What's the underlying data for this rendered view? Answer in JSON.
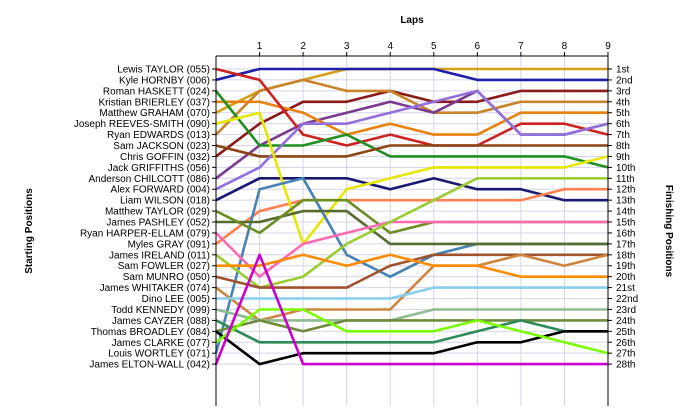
{
  "chart_data": {
    "type": "line",
    "title": "Laps",
    "ylabel_left": "Starting Positions",
    "ylabel_right": "Finishing Positions",
    "x_ticks": [
      "1",
      "2",
      "3",
      "4",
      "5",
      "6",
      "7",
      "8",
      "9"
    ],
    "x_range": [
      0,
      9
    ],
    "position_range": [
      1,
      28
    ],
    "grid": true,
    "drivers": [
      "Lewis TAYLOR (055)",
      "Kyle HORNBY (006)",
      "Roman HASKETT (024)",
      "Kristian BRIERLEY (037)",
      "Matthew GRAHAM (070)",
      "Joseph REEVES-SMITH (090)",
      "Ryan EDWARDS (013)",
      "Sam JACKSON (023)",
      "Chris GOFFIN (032)",
      "Jack GRIFFITHS (056)",
      "Anderson CHILCOTT (086)",
      "Alex FORWARD (004)",
      "Liam WILSON (018)",
      "Matthew TAYLOR (029)",
      "James PASHLEY (052)",
      "Ryan HARPER-ELLAM (079)",
      "Myles GRAY (091)",
      "James IRELAND (011)",
      "Sam FOWLER (027)",
      "Sam MUNRO (050)",
      "James WHITAKER (074)",
      "Dino LEE (005)",
      "Todd KENNEDY (099)",
      "James CAYZER (088)",
      "Thomas BROADLEY (084)",
      "James CLARKE (077)",
      "Louis WORTLEY (071)",
      "James ELTON-WALL (042)"
    ],
    "finishing_labels": [
      "1st",
      "2nd",
      "3rd",
      "4th",
      "5th",
      "6th",
      "7th",
      "8th",
      "9th",
      "10th",
      "11th",
      "12th",
      "13th",
      "14th",
      "15th",
      "16th",
      "17th",
      "18th",
      "19th",
      "20th",
      "21st",
      "22nd",
      "23rd",
      "24th",
      "25th",
      "26th",
      "27th",
      "28th"
    ],
    "series": [
      {
        "color": "#d4a017",
        "positions": [
          5,
          3,
          2,
          1,
          1,
          1,
          1,
          1,
          1,
          1
        ]
      },
      {
        "color": "#1f1faa",
        "positions": [
          2,
          1,
          1,
          1,
          1,
          1,
          2,
          2,
          2,
          2
        ]
      },
      {
        "color": "#8b1a1a",
        "positions": [
          9,
          6,
          4,
          4,
          3,
          4,
          4,
          3,
          3,
          3
        ]
      },
      {
        "color": "#c8842a",
        "positions": [
          7,
          3,
          2,
          3,
          3,
          5,
          5,
          4,
          4,
          4
        ]
      },
      {
        "color": "#7a3b8f",
        "positions": [
          11,
          8,
          6,
          5,
          4,
          5,
          3,
          7,
          7,
          6
        ]
      },
      {
        "color": "#e8820c",
        "positions": [
          4,
          4,
          5,
          7,
          6,
          7,
          7,
          5,
          5,
          5
        ]
      },
      {
        "color": "#cc2222",
        "positions": [
          1,
          2,
          7,
          8,
          7,
          8,
          8,
          6,
          6,
          7
        ]
      },
      {
        "color": "#1f8f1f",
        "positions": [
          3,
          8,
          8,
          7,
          9,
          9,
          9,
          9,
          9,
          10
        ]
      },
      {
        "color": "#8b4513",
        "positions": [
          8,
          9,
          9,
          9,
          8,
          8,
          8,
          8,
          8,
          8
        ]
      },
      {
        "color": "#9370db",
        "positions": [
          12,
          10,
          6,
          6,
          5,
          4,
          3,
          7,
          7,
          6
        ]
      },
      {
        "color": "#191970",
        "positions": [
          13,
          11,
          11,
          11,
          12,
          11,
          12,
          12,
          13,
          13
        ]
      },
      {
        "color": "#ff7f50",
        "positions": [
          17,
          14,
          13,
          13,
          13,
          13,
          13,
          13,
          12,
          12
        ]
      },
      {
        "color": "#e6e600",
        "positions": [
          6,
          5,
          17,
          12,
          11,
          10,
          10,
          10,
          10,
          9
        ]
      },
      {
        "color": "#4682b4",
        "positions": [
          27,
          12,
          11,
          18,
          20,
          18,
          17,
          17,
          17,
          17
        ]
      },
      {
        "color": "#556b2f",
        "positions": [
          15,
          15,
          14,
          14,
          17,
          17,
          17,
          17,
          17,
          17
        ]
      },
      {
        "color": "#6b8e23",
        "positions": [
          14,
          16,
          13,
          13,
          16,
          15,
          15,
          15,
          15,
          15
        ]
      },
      {
        "color": "#ff69b4",
        "positions": [
          16,
          20,
          17,
          16,
          15,
          15,
          15,
          15,
          15,
          15
        ]
      },
      {
        "color": "#9acd32",
        "positions": [
          18,
          21,
          20,
          17,
          15,
          13,
          11,
          11,
          11,
          11
        ]
      },
      {
        "color": "#a0522d",
        "positions": [
          20,
          21,
          21,
          21,
          19,
          18,
          18,
          18,
          18,
          18
        ]
      },
      {
        "color": "#cd853f",
        "positions": [
          21,
          24,
          23,
          23,
          23,
          19,
          19,
          18,
          19,
          18
        ]
      },
      {
        "color": "#87ceeb",
        "positions": [
          22,
          22,
          22,
          22,
          22,
          21,
          21,
          21,
          21,
          21
        ]
      },
      {
        "color": "#ff8c00",
        "positions": [
          19,
          19,
          18,
          19,
          18,
          19,
          19,
          20,
          20,
          20
        ]
      },
      {
        "color": "#8fbc8f",
        "positions": [
          23,
          24,
          24,
          24,
          24,
          23,
          23,
          23,
          23,
          23
        ]
      },
      {
        "color": "#6e8b3d",
        "positions": [
          25,
          24,
          25,
          24,
          24,
          24,
          24,
          24,
          24,
          24
        ]
      },
      {
        "color": "#2e8b57",
        "positions": [
          24,
          26,
          26,
          26,
          26,
          26,
          25,
          24,
          25,
          25
        ]
      },
      {
        "color": "#000000",
        "positions": [
          25,
          28,
          27,
          27,
          27,
          27,
          26,
          26,
          25,
          25
        ]
      },
      {
        "color": "#7cfc00",
        "positions": [
          26,
          23,
          23,
          25,
          25,
          25,
          24,
          25,
          26,
          27
        ]
      },
      {
        "color": "#cc00cc",
        "positions": [
          28,
          18,
          28,
          28,
          28,
          28,
          28,
          28,
          28,
          28
        ]
      }
    ]
  }
}
